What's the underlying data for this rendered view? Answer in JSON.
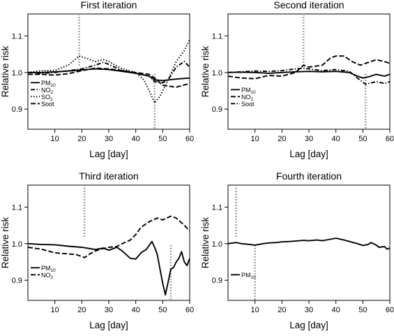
{
  "chart_data": [
    {
      "type": "line",
      "title": "First iteration",
      "xlabel": "Lag [day]",
      "ylabel": "Relative risk",
      "xlim": [
        0,
        60
      ],
      "ylim": [
        0.845,
        1.16
      ],
      "xticks": [
        10,
        20,
        30,
        40,
        50,
        60
      ],
      "yticks": [
        0.9,
        1.0,
        1.1
      ],
      "xtick_labels": [
        "10",
        "20",
        "30",
        "40",
        "50",
        "60"
      ],
      "ytick_labels": [
        "0.9",
        "1.0",
        "1.1"
      ],
      "legend_position": "bottom-left",
      "vlines": [
        19,
        47
      ],
      "series": [
        {
          "name": "PM",
          "sub": "10",
          "style": "solid",
          "x": [
            0,
            5,
            10,
            15,
            20,
            25,
            30,
            35,
            40,
            45,
            47,
            50,
            55,
            60
          ],
          "y": [
            1.0,
            1.0,
            1.002,
            1.004,
            1.007,
            1.01,
            1.008,
            1.003,
            0.998,
            0.99,
            0.98,
            0.978,
            0.982,
            0.985
          ]
        },
        {
          "name": "NO",
          "sub": "2",
          "style": "dashdot",
          "x": [
            0,
            5,
            10,
            15,
            20,
            25,
            28,
            30,
            35,
            40,
            45,
            47,
            50,
            52,
            55,
            58,
            60
          ],
          "y": [
            1.0,
            0.998,
            1.0,
            1.005,
            1.01,
            1.02,
            1.028,
            1.022,
            1.005,
            0.998,
            0.99,
            0.975,
            0.972,
            0.98,
            1.015,
            1.03,
            1.015
          ]
        },
        {
          "name": "SO",
          "sub": "2",
          "style": "dotted",
          "x": [
            0,
            5,
            10,
            15,
            19,
            22,
            25,
            28,
            30,
            35,
            40,
            43,
            45,
            47,
            49,
            52,
            55,
            58,
            60
          ],
          "y": [
            1.0,
            1.005,
            1.006,
            1.02,
            1.045,
            1.038,
            1.03,
            1.035,
            1.03,
            1.01,
            1.0,
            0.98,
            0.95,
            0.917,
            0.935,
            0.98,
            1.03,
            1.06,
            1.09
          ]
        },
        {
          "name": "Soot",
          "sub": "",
          "style": "dashed",
          "x": [
            0,
            5,
            10,
            15,
            20,
            25,
            30,
            35,
            40,
            45,
            47,
            50,
            55,
            60
          ],
          "y": [
            0.995,
            0.995,
            0.993,
            0.997,
            1.005,
            1.012,
            1.01,
            1.005,
            1.0,
            0.995,
            0.985,
            0.965,
            0.96,
            0.97
          ]
        }
      ]
    },
    {
      "type": "line",
      "title": "Second iteration",
      "xlabel": "Lag [day]",
      "ylabel": "Relative risk",
      "xlim": [
        0,
        60
      ],
      "ylim": [
        0.845,
        1.16
      ],
      "xticks": [
        10,
        20,
        30,
        40,
        50,
        60
      ],
      "yticks": [
        0.9,
        1.0,
        1.1
      ],
      "xtick_labels": [
        "10",
        "20",
        "30",
        "40",
        "50",
        "60"
      ],
      "ytick_labels": [
        "0.9",
        "1.0",
        "1.1"
      ],
      "legend_position": "bottom-left",
      "vlines": [
        28,
        51
      ],
      "series": [
        {
          "name": "PM",
          "sub": "10",
          "style": "solid",
          "x": [
            0,
            5,
            10,
            15,
            20,
            25,
            30,
            35,
            40,
            45,
            48,
            50,
            52,
            55,
            58,
            60
          ],
          "y": [
            1.0,
            1.001,
            1.0,
            0.998,
            1.0,
            1.002,
            1.003,
            1.002,
            1.003,
            1.0,
            0.99,
            0.985,
            0.988,
            0.995,
            0.99,
            0.995
          ]
        },
        {
          "name": "NO",
          "sub": "2",
          "style": "dashed",
          "x": [
            0,
            5,
            10,
            15,
            20,
            25,
            28,
            30,
            35,
            38,
            40,
            43,
            46,
            49,
            51,
            53,
            55,
            58,
            60
          ],
          "y": [
            0.99,
            0.985,
            0.983,
            0.992,
            0.99,
            1.0,
            1.02,
            1.015,
            1.02,
            1.04,
            1.045,
            1.045,
            1.03,
            1.02,
            1.025,
            1.03,
            1.035,
            1.03,
            1.025
          ]
        },
        {
          "name": "Soot",
          "sub": "",
          "style": "dashdot",
          "x": [
            0,
            5,
            10,
            15,
            20,
            25,
            28,
            30,
            35,
            40,
            45,
            48,
            51,
            55,
            58,
            60
          ],
          "y": [
            1.0,
            1.002,
            1.004,
            1.003,
            1.005,
            1.01,
            1.012,
            1.01,
            1.005,
            1.008,
            1.003,
            0.985,
            0.968,
            0.975,
            0.97,
            0.975
          ]
        }
      ]
    },
    {
      "type": "line",
      "title": "Third iteration",
      "xlabel": "Lag [day]",
      "ylabel": "Relative risk",
      "xlim": [
        0,
        60
      ],
      "ylim": [
        0.845,
        1.16
      ],
      "xticks": [
        10,
        20,
        30,
        40,
        50,
        60
      ],
      "yticks": [
        0.9,
        1.0,
        1.1
      ],
      "xtick_labels": [
        "10",
        "20",
        "30",
        "40",
        "50",
        "60"
      ],
      "ytick_labels": [
        "0.9",
        "1.0",
        "1.1"
      ],
      "legend_position": "bottom-left",
      "vlines": [
        21,
        53
      ],
      "series": [
        {
          "name": "PM",
          "sub": "10",
          "style": "solid",
          "x": [
            0,
            5,
            10,
            15,
            20,
            25,
            28,
            30,
            33,
            35,
            38,
            40,
            42,
            44,
            46,
            47,
            48,
            49,
            50,
            51,
            52,
            53,
            54,
            55,
            56,
            57,
            58,
            59,
            60
          ],
          "y": [
            1.0,
            0.998,
            0.997,
            0.993,
            0.99,
            0.984,
            0.988,
            0.982,
            0.99,
            0.98,
            0.96,
            0.958,
            0.975,
            0.985,
            1.006,
            0.99,
            0.97,
            0.93,
            0.892,
            0.86,
            0.895,
            0.93,
            0.935,
            0.95,
            0.96,
            0.978,
            0.95,
            0.94,
            0.96
          ]
        },
        {
          "name": "NO",
          "sub": "2",
          "style": "dashed",
          "x": [
            0,
            5,
            10,
            15,
            18,
            21,
            23,
            25,
            27,
            30,
            33,
            35,
            38,
            40,
            42,
            45,
            48,
            50,
            53,
            55,
            58,
            60
          ],
          "y": [
            0.99,
            0.985,
            0.975,
            0.972,
            0.97,
            0.962,
            0.972,
            0.98,
            0.985,
            0.99,
            0.992,
            1.0,
            1.01,
            1.025,
            1.045,
            1.06,
            1.07,
            1.065,
            1.075,
            1.07,
            1.05,
            1.035
          ]
        }
      ]
    },
    {
      "type": "line",
      "title": "Fourth iteration",
      "xlabel": "Lag [day]",
      "ylabel": "Relative risk",
      "xlim": [
        0,
        60
      ],
      "ylim": [
        0.845,
        1.16
      ],
      "xticks": [
        10,
        20,
        30,
        40,
        50,
        60
      ],
      "yticks": [
        0.9,
        1.0,
        1.1
      ],
      "xtick_labels": [
        "10",
        "20",
        "30",
        "40",
        "50",
        "60"
      ],
      "ytick_labels": [
        "0.9",
        "1.0",
        "1.1"
      ],
      "legend_position": "bottom-left",
      "vlines": [
        3,
        10
      ],
      "series": [
        {
          "name": "PM",
          "sub": "10",
          "style": "solid",
          "x": [
            0,
            3,
            5,
            8,
            10,
            13,
            15,
            18,
            20,
            23,
            25,
            28,
            30,
            33,
            35,
            38,
            40,
            43,
            45,
            48,
            50,
            52,
            53,
            55,
            56,
            58,
            59,
            60
          ],
          "y": [
            1.0,
            1.003,
            1.0,
            0.998,
            0.996,
            1.0,
            1.002,
            1.003,
            1.005,
            1.006,
            1.007,
            1.009,
            1.008,
            1.01,
            1.008,
            1.012,
            1.015,
            1.01,
            1.006,
            1.0,
            0.995,
            0.998,
            1.003,
            0.996,
            0.99,
            0.992,
            0.985,
            0.988
          ]
        }
      ]
    }
  ]
}
